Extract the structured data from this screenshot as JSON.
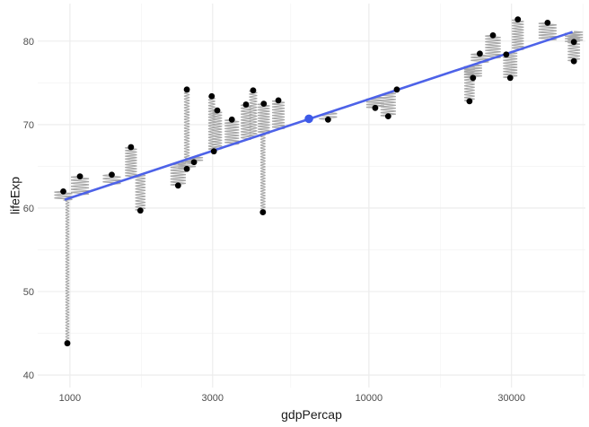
{
  "chart_data": {
    "type": "scatter",
    "title": "",
    "xlabel": "gdpPercap",
    "ylabel": "lifeExp",
    "x_scale": "log10",
    "xlim": [
      780,
      53000
    ],
    "ylim": [
      38.5,
      84.5
    ],
    "x_ticks": [
      1000,
      3000,
      10000,
      30000
    ],
    "x_tick_labels": [
      "1000",
      "3000",
      "10000",
      "30000"
    ],
    "y_ticks": [
      40,
      50,
      60,
      70,
      80
    ],
    "y_tick_labels": [
      "40",
      "50",
      "60",
      "70",
      "80"
    ],
    "grid": true,
    "legend": "none",
    "point_color": "#000000",
    "fit_line": {
      "color": "#4d62e8",
      "x": [
        960,
        48000
      ],
      "y": [
        61.0,
        81.1
      ]
    },
    "mean_point": {
      "x": 6300,
      "y": 70.7,
      "color": "#3d5ae8"
    },
    "residual_connector": {
      "style": "spring",
      "color": "#a8a8a8"
    },
    "points": [
      {
        "x": 950,
        "y": 62.0
      },
      {
        "x": 980,
        "y": 43.8
      },
      {
        "x": 1080,
        "y": 63.8
      },
      {
        "x": 1380,
        "y": 64.0
      },
      {
        "x": 1600,
        "y": 67.3
      },
      {
        "x": 1720,
        "y": 59.7
      },
      {
        "x": 2300,
        "y": 62.7
      },
      {
        "x": 2460,
        "y": 74.2
      },
      {
        "x": 2460,
        "y": 64.7
      },
      {
        "x": 2600,
        "y": 65.5
      },
      {
        "x": 2980,
        "y": 73.4
      },
      {
        "x": 3030,
        "y": 66.8
      },
      {
        "x": 3110,
        "y": 71.7
      },
      {
        "x": 3480,
        "y": 70.6
      },
      {
        "x": 3880,
        "y": 72.4
      },
      {
        "x": 4100,
        "y": 74.1
      },
      {
        "x": 4420,
        "y": 59.5
      },
      {
        "x": 4450,
        "y": 72.5
      },
      {
        "x": 4980,
        "y": 72.9
      },
      {
        "x": 7300,
        "y": 70.6
      },
      {
        "x": 10500,
        "y": 72.0
      },
      {
        "x": 11600,
        "y": 71.0
      },
      {
        "x": 12400,
        "y": 74.2
      },
      {
        "x": 21700,
        "y": 72.8
      },
      {
        "x": 22300,
        "y": 75.6
      },
      {
        "x": 23500,
        "y": 78.5
      },
      {
        "x": 26000,
        "y": 80.7
      },
      {
        "x": 28800,
        "y": 78.4
      },
      {
        "x": 29700,
        "y": 75.6
      },
      {
        "x": 31500,
        "y": 82.6
      },
      {
        "x": 39600,
        "y": 82.2
      },
      {
        "x": 48500,
        "y": 79.9
      },
      {
        "x": 48500,
        "y": 77.6
      }
    ]
  }
}
